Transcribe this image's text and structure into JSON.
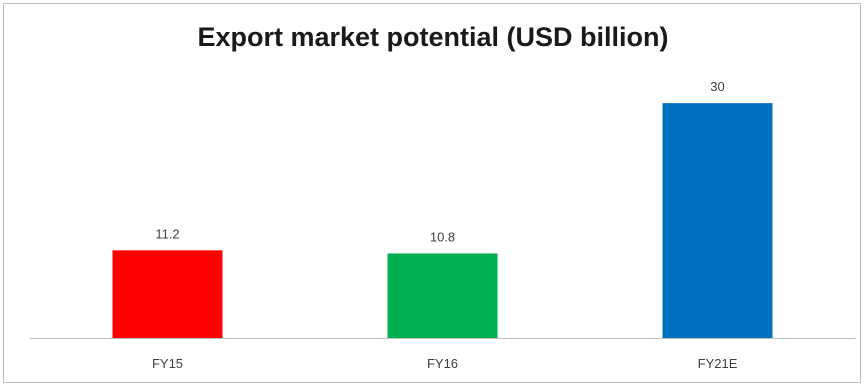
{
  "chart_data": {
    "type": "bar",
    "title": "Export market potential (USD billion)",
    "categories": [
      "FY15",
      "FY16",
      "FY21E"
    ],
    "values": [
      11.2,
      10.8,
      30
    ],
    "data_labels": [
      "11.2",
      "10.8",
      "30"
    ],
    "colors": [
      "#ff0000",
      "#00b050",
      "#0070c0"
    ],
    "xlabel": "",
    "ylabel": "",
    "ylim": [
      0,
      35
    ],
    "grid": false,
    "legend": "none"
  }
}
